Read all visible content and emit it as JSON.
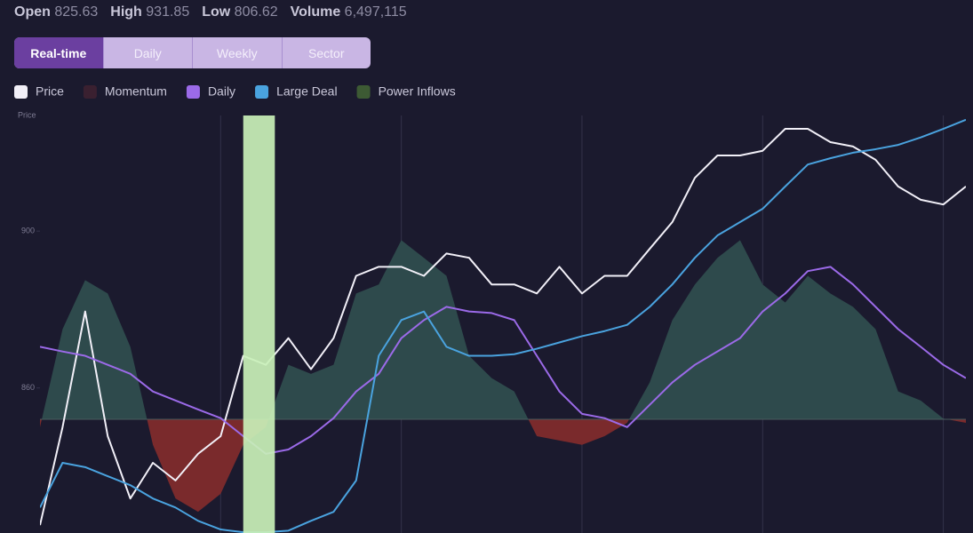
{
  "header": {
    "stats": [
      {
        "label": "Open",
        "value": "825.63"
      },
      {
        "label": "High",
        "value": "931.85"
      },
      {
        "label": "Low",
        "value": "806.62"
      },
      {
        "label": "Volume",
        "value": "6,497,115"
      }
    ]
  },
  "tabs": {
    "items": [
      "Real-time",
      "Daily",
      "Weekly",
      "Sector"
    ],
    "active": 0
  },
  "chart_data": {
    "type": "line",
    "y_label": "Price",
    "x": [
      0,
      1,
      2,
      3,
      4,
      5,
      6,
      7,
      8,
      9,
      10,
      11,
      12,
      13,
      14,
      15,
      16,
      17,
      18,
      19,
      20,
      21,
      22,
      23,
      24,
      25,
      26,
      27,
      28,
      29,
      30,
      31,
      32,
      33,
      34,
      35,
      36,
      37,
      38,
      39,
      40,
      41
    ],
    "xlim": [
      0,
      41
    ],
    "xticks": [
      8,
      16,
      24,
      32,
      40
    ],
    "ylim": [
      823,
      929.5
    ],
    "yticks": [
      860,
      900
    ],
    "grid": true,
    "series": [
      {
        "name": "Price",
        "color": "#f2f0f8",
        "kind": "line",
        "values": [
          825.0,
          850.0,
          879.5,
          847.7,
          831.8,
          840.9,
          836.4,
          843.2,
          847.7,
          868.2,
          865.9,
          872.7,
          864.8,
          872.7,
          888.6,
          890.9,
          890.9,
          888.6,
          894.3,
          893.2,
          886.4,
          886.4,
          884.1,
          890.9,
          884.1,
          888.6,
          888.6,
          895.5,
          902.3,
          913.6,
          919.3,
          919.3,
          920.5,
          926.1,
          926.1,
          922.7,
          921.6,
          918.2,
          911.4,
          908.0,
          906.8,
          911.4
        ]
      },
      {
        "name": "Momentum",
        "color": "#3a2030",
        "kind": "area",
        "baseline": 852,
        "fill_positive": "#2e4a4c",
        "fill_negative": "#7a2a2c",
        "values": [
          850.0,
          875.0,
          887.5,
          884.1,
          870.5,
          845.5,
          831.8,
          828.4,
          833.0,
          845.5,
          850.0,
          865.9,
          863.6,
          865.9,
          884.1,
          886.4,
          897.7,
          893.2,
          888.6,
          868.2,
          862.5,
          859.1,
          847.7,
          846.6,
          845.5,
          847.7,
          851.1,
          861.4,
          877.3,
          886.4,
          893.2,
          897.7,
          886.4,
          881.8,
          888.6,
          884.1,
          880.7,
          875.0,
          859.1,
          856.8,
          852.2,
          851.1
        ]
      },
      {
        "name": "Daily",
        "color": "#9b6ae8",
        "kind": "line",
        "values": [
          870.5,
          869.3,
          868.2,
          865.9,
          863.6,
          859.1,
          856.8,
          854.5,
          852.3,
          847.7,
          843.2,
          844.3,
          847.7,
          852.3,
          859.1,
          863.6,
          872.7,
          877.3,
          880.7,
          879.5,
          879.1,
          877.3,
          868.2,
          859.1,
          853.4,
          852.3,
          850.0,
          855.7,
          861.4,
          865.9,
          869.3,
          872.7,
          879.5,
          884.1,
          889.8,
          890.9,
          886.4,
          880.7,
          875.0,
          870.5,
          865.9,
          862.5
        ]
      },
      {
        "name": "Large Deal",
        "color": "#4aa3df",
        "kind": "line",
        "values": [
          829.5,
          840.9,
          839.8,
          837.5,
          835.2,
          831.8,
          829.5,
          826.1,
          823.9,
          823.2,
          823.2,
          823.6,
          826.1,
          828.4,
          836.4,
          868.2,
          877.3,
          879.5,
          870.5,
          868.2,
          868.2,
          868.6,
          870.0,
          871.6,
          873.2,
          874.5,
          876.1,
          880.7,
          886.4,
          893.2,
          898.9,
          902.3,
          905.7,
          911.4,
          917.0,
          918.6,
          920.0,
          920.9,
          922.0,
          923.9,
          926.1,
          928.4
        ]
      },
      {
        "name": "Power Inflows",
        "color": "#3d5a34",
        "kind": "band",
        "band_color": "#c9f0b8",
        "band": [
          9,
          10.4
        ]
      }
    ]
  }
}
